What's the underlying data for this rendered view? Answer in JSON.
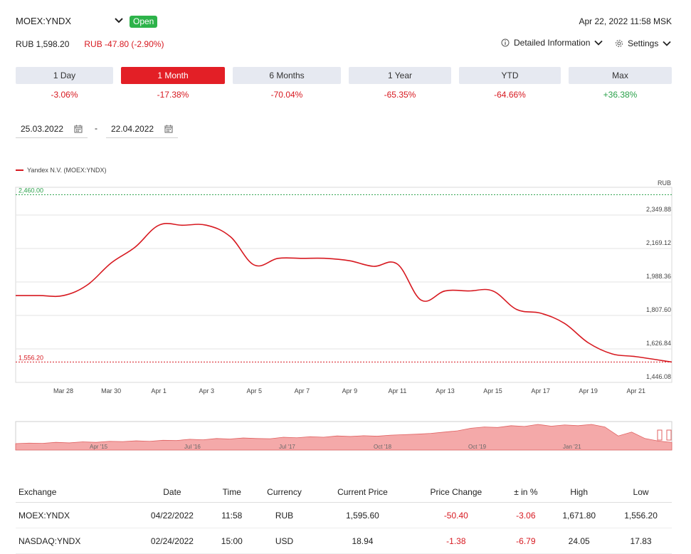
{
  "header": {
    "ticker": "MOEX:YNDX",
    "status": "Open",
    "timestamp": "Apr 22, 2022 11:58 MSK",
    "price": "RUB 1,598.20",
    "change": "RUB -47.80 (-2.90%)",
    "detail_label": "Detailed Information",
    "settings_label": "Settings"
  },
  "periods": [
    {
      "label": "1 Day",
      "change": "-3.06%",
      "dir": "neg"
    },
    {
      "label": "1 Month",
      "change": "-17.38%",
      "dir": "neg",
      "active": true
    },
    {
      "label": "6 Months",
      "change": "-70.04%",
      "dir": "neg"
    },
    {
      "label": "1 Year",
      "change": "-65.35%",
      "dir": "neg"
    },
    {
      "label": "YTD",
      "change": "-64.66%",
      "dir": "neg"
    },
    {
      "label": "Max",
      "change": "+36.38%",
      "dir": "pos"
    }
  ],
  "date_range": {
    "from": "25.03.2022",
    "separator": "-",
    "to": "22.04.2022"
  },
  "chart_data": {
    "type": "line",
    "title": "",
    "legend": "Yandex N.V. (MOEX:YNDX)",
    "ylabel": "RUB",
    "ylim": [
      1446.08,
      2500
    ],
    "yticks": [
      1446.08,
      1626.84,
      1807.6,
      1988.36,
      2169.12,
      2349.88
    ],
    "ytick_labels": [
      "1,446.08",
      "1,626.84",
      "1,807.60",
      "1,988.36",
      "2,169.12",
      "2,349.88"
    ],
    "xlim": [
      -1,
      26.5
    ],
    "xticks": [
      1,
      3,
      5,
      7,
      9,
      11,
      13,
      15,
      17,
      19,
      21,
      23,
      25
    ],
    "xtick_labels": [
      "Mar 28",
      "Mar 30",
      "Apr 1",
      "Apr 3",
      "Apr 5",
      "Apr 7",
      "Apr 9",
      "Apr 11",
      "Apr 13",
      "Apr 15",
      "Apr 17",
      "Apr 19",
      "Apr 21"
    ],
    "reference_lines": [
      {
        "value": 2460.0,
        "label": "2,460.00",
        "color": "#2aa14a"
      },
      {
        "value": 1556.2,
        "label": "1,556.20",
        "color": "#d71920"
      }
    ],
    "series": [
      {
        "name": "Yandex N.V. (MOEX:YNDX)",
        "color": "#d71920",
        "x": [
          -1,
          0,
          1,
          2,
          3,
          4,
          5,
          6,
          7,
          8,
          9,
          10,
          11,
          12,
          13,
          14,
          15,
          16,
          17,
          18,
          19,
          20,
          21,
          22,
          23,
          24,
          25,
          26.5
        ],
        "y": [
          1915,
          1915,
          1915,
          1972,
          2091,
          2176,
          2295,
          2295,
          2295,
          2233,
          2080,
          2116,
          2116,
          2116,
          2103,
          2073,
          2085,
          1890,
          1940,
          1940,
          1940,
          1840,
          1820,
          1765,
          1660,
          1600,
          1585,
          1556
        ]
      }
    ]
  },
  "navigator": {
    "labels": [
      "Apr '15",
      "Jul '16",
      "Jul '17",
      "Oct '18",
      "Oct '19",
      "Jan '21"
    ],
    "values": [
      0.25,
      0.27,
      0.26,
      0.3,
      0.28,
      0.32,
      0.3,
      0.34,
      0.33,
      0.36,
      0.34,
      0.38,
      0.37,
      0.42,
      0.4,
      0.45,
      0.43,
      0.47,
      0.45,
      0.44,
      0.5,
      0.48,
      0.52,
      0.5,
      0.55,
      0.53,
      0.56,
      0.54,
      0.58,
      0.6,
      0.62,
      0.65,
      0.7,
      0.75,
      0.85,
      0.9,
      0.88,
      0.95,
      0.92,
      1.0,
      0.93,
      0.98,
      0.95,
      1.0,
      0.9,
      0.55,
      0.7,
      0.45,
      0.35,
      0.3
    ]
  },
  "table": {
    "columns": [
      "Exchange",
      "Date",
      "Time",
      "Currency",
      "Current Price",
      "Price Change",
      "± in %",
      "High",
      "Low"
    ],
    "rows": [
      [
        "MOEX:YNDX",
        "04/22/2022",
        "11:58",
        "RUB",
        "1,595.60",
        "-50.40",
        "-3.06",
        "1,671.80",
        "1,556.20"
      ],
      [
        "NASDAQ:YNDX",
        "02/24/2022",
        "15:00",
        "USD",
        "18.94",
        "-1.38",
        "-6.79",
        "24.05",
        "17.83"
      ]
    ]
  }
}
